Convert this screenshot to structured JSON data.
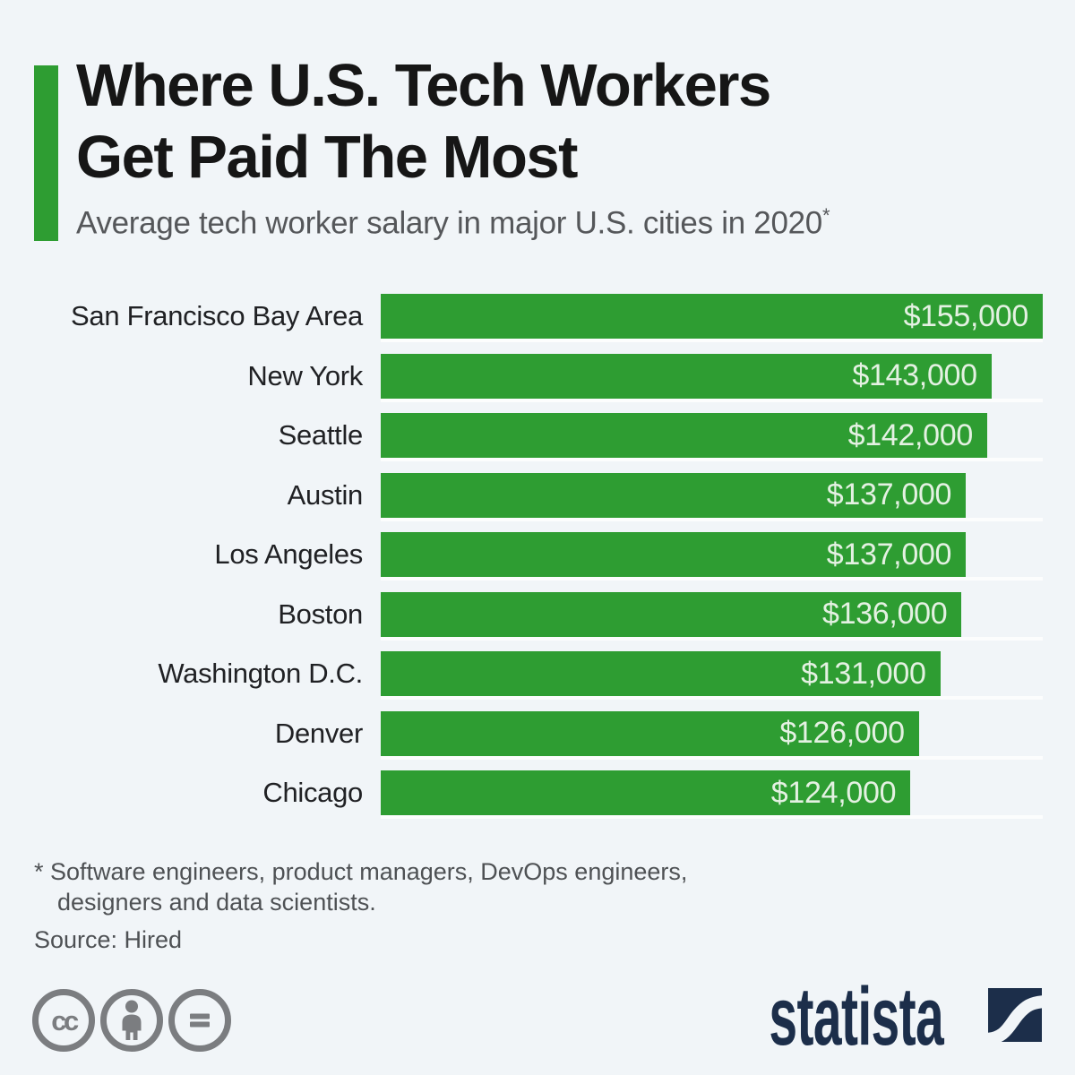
{
  "page": {
    "background": "#f1f5f8"
  },
  "header": {
    "accent_color": "#2e9d32",
    "title": "Where U.S. Tech Workers Get Paid The Most",
    "title_lines": [
      "Where U.S. Tech Workers",
      "Get Paid The Most"
    ],
    "subtitle": "Average tech worker salary in major U.S. cities in 2020",
    "subtitle_footnote_marker": "*"
  },
  "chart_data": {
    "type": "bar",
    "orientation": "horizontal",
    "title": "Where U.S. Tech Workers Get Paid The Most",
    "subtitle": "Average tech worker salary in major U.S. cities in 2020*",
    "categories": [
      "San Francisco Bay Area",
      "New York",
      "Seattle",
      "Austin",
      "Los Angeles",
      "Boston",
      "Washington D.C.",
      "Denver",
      "Chicago"
    ],
    "values": [
      155000,
      143000,
      142000,
      137000,
      137000,
      136000,
      131000,
      126000,
      124000
    ],
    "value_labels": [
      "$155,000",
      "$143,000",
      "$142,000",
      "$137,000",
      "$137,000",
      "$136,000",
      "$131,000",
      "$126,000",
      "$124,000"
    ],
    "xlim": [
      0,
      155000
    ],
    "xlabel": "",
    "ylabel": "",
    "grid": false,
    "legend": false,
    "bar_color": "#2e9d32",
    "value_label_color": "#e4f1e2",
    "value_label_position": "inside-end"
  },
  "footnote": {
    "text": "* Software engineers, product managers, DevOps engineers, designers and data scientists.",
    "source": "Source: Hired"
  },
  "footer": {
    "license_icons": [
      {
        "name": "cc-icon",
        "label": "cc"
      },
      {
        "name": "attribution-icon",
        "label": "by"
      },
      {
        "name": "no-derivatives-icon",
        "label": "nd"
      }
    ],
    "icon_color": "#7b7d80",
    "brand": "statista",
    "brand_color": "#1c2e4a"
  }
}
